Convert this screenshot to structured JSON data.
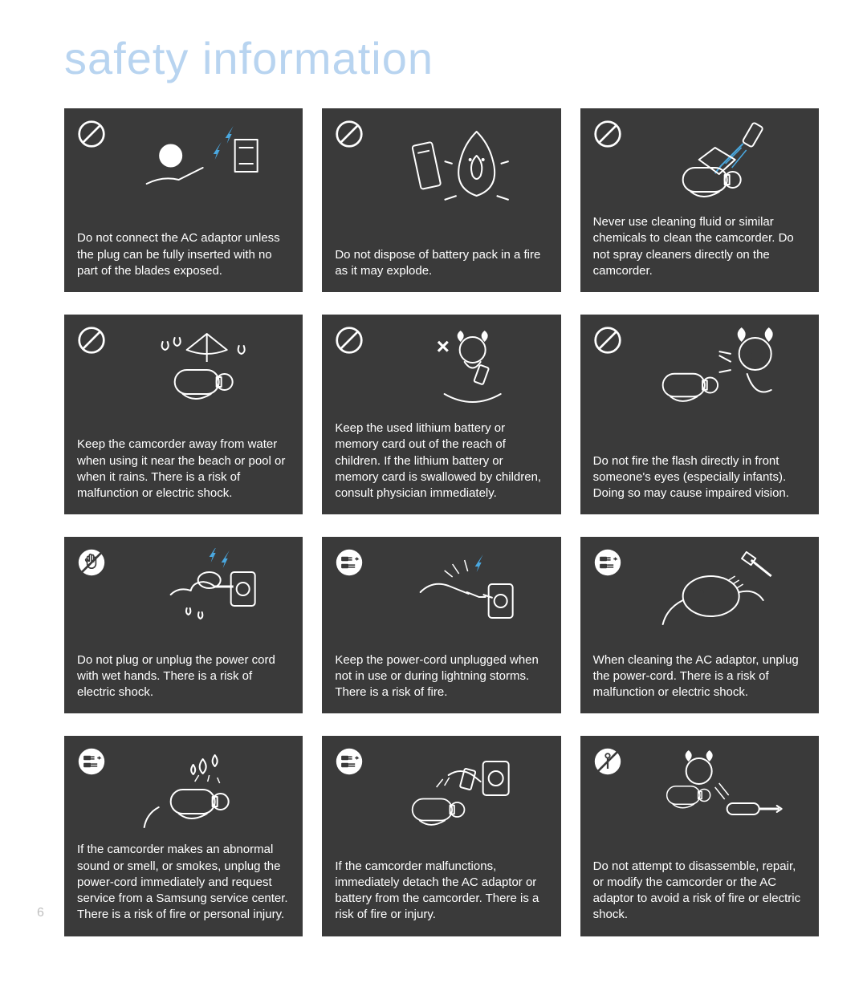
{
  "title": "safety information",
  "page_number": "6",
  "colors": {
    "card_bg": "#3a3a3a",
    "text": "#ffffff",
    "title": "#b8d4f0",
    "accent": "#4aa8e0",
    "stroke": "#ffffff",
    "badge_fill": "#ffffff"
  },
  "cards": [
    {
      "badge": "prohibit",
      "illustration": "plug-spark",
      "caption": "Do not connect the AC adaptor unless the plug can be fully inserted with no part of the blades exposed."
    },
    {
      "badge": "prohibit",
      "illustration": "battery-fire",
      "caption": "Do not dispose of battery pack in a fire as it may explode."
    },
    {
      "badge": "prohibit",
      "illustration": "spray-camcorder",
      "caption": "Never use cleaning fluid or similar chemicals to clean the camcorder. Do not spray cleaners directly on the camcorder."
    },
    {
      "badge": "prohibit",
      "illustration": "camcorder-rain",
      "caption": "Keep the camcorder away from water when using it near the beach or pool or when it rains. There is a risk of malfunction or electric shock."
    },
    {
      "badge": "prohibit",
      "illustration": "child-battery",
      "caption": "Keep the used lithium battery or memory card out of the reach of children. If the lithium battery or memory card is swallowed by children, consult physician immediately."
    },
    {
      "badge": "prohibit",
      "illustration": "flash-eyes",
      "caption": "Do not fire the flash directly in front someone's eyes (especially infants). Doing so may cause impaired vision."
    },
    {
      "badge": "no-hand",
      "illustration": "wet-hand-plug",
      "caption": "Do not plug or unplug the power cord with wet hands. There is a risk of electric shock."
    },
    {
      "badge": "unplug",
      "illustration": "unplug-lightning",
      "caption": "Keep the power-cord unplugged when not in use or during lightning storms. There is a risk of fire."
    },
    {
      "badge": "unplug",
      "illustration": "adaptor-clean",
      "caption": "When cleaning the AC adaptor, unplug the power-cord. There is a risk of malfunction or electric shock."
    },
    {
      "badge": "unplug",
      "illustration": "camcorder-smoke",
      "caption": "If the camcorder makes an abnormal sound or smell, or smokes, unplug the power-cord immediately and request service from a Samsung service center. There is a risk of fire or personal injury."
    },
    {
      "badge": "unplug",
      "illustration": "detach-battery",
      "caption": "If the camcorder malfunctions, immediately detach the AC adaptor or battery from the camcorder.\nThere is a risk of fire or injury."
    },
    {
      "badge": "no-disassemble",
      "illustration": "screwdriver-camcorder",
      "caption": "Do not attempt to disassemble, repair, or modify the camcorder or the AC adaptor to avoid a risk of fire or electric shock."
    }
  ]
}
